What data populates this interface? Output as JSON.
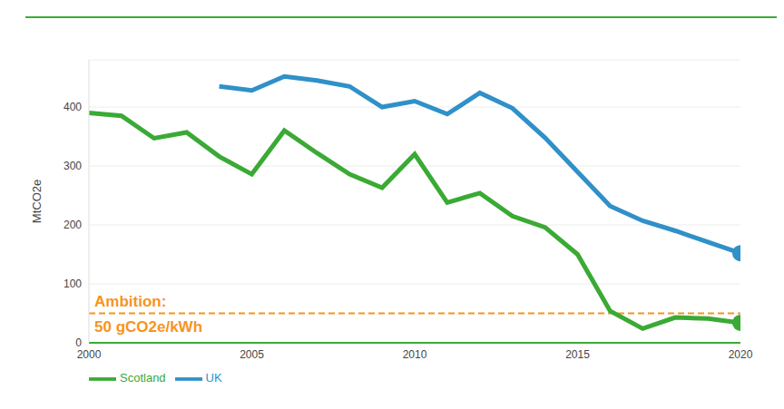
{
  "chart_data": {
    "type": "line",
    "x": [
      2000,
      2001,
      2002,
      2003,
      2004,
      2005,
      2006,
      2007,
      2008,
      2009,
      2010,
      2011,
      2012,
      2013,
      2014,
      2015,
      2016,
      2017,
      2018,
      2019,
      2020
    ],
    "series": [
      {
        "name": "Scotland",
        "color": "#3aaa35",
        "marker": "end",
        "values": [
          390,
          385,
          347,
          357,
          316,
          286,
          360,
          322,
          286,
          263,
          320,
          238,
          254,
          215,
          196,
          150,
          54,
          24,
          43,
          41,
          34
        ]
      },
      {
        "name": "UK",
        "color": "#3090c8",
        "marker": "end",
        "values": [
          null,
          null,
          null,
          null,
          435,
          428,
          452,
          445,
          435,
          400,
          410,
          388,
          424,
          398,
          348,
          290,
          232,
          207,
          190,
          171,
          152
        ]
      }
    ],
    "ylabel": "MtCO2e",
    "xlim": [
      2000,
      2020
    ],
    "xticks": [
      2000,
      2005,
      2010,
      2015,
      2020
    ],
    "ylim": [
      0,
      480
    ],
    "yticks": [
      0,
      100,
      200,
      300,
      400
    ],
    "grid": true,
    "legend": "lower left",
    "annotations": [
      {
        "text": [
          "Ambition:",
          "50 gCO2e/kWh"
        ],
        "y": 50,
        "color": "#f7941d",
        "line_style": "dashed"
      }
    ]
  }
}
